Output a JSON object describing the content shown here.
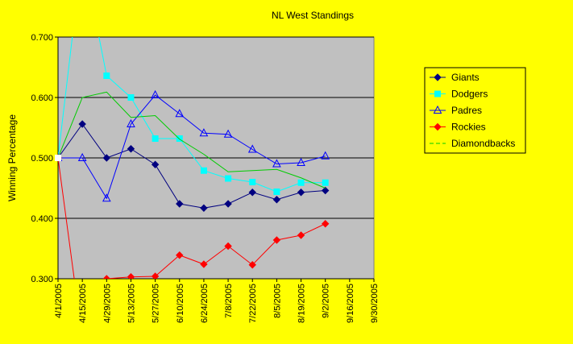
{
  "chart_data": {
    "type": "line",
    "title": "NL West Standings",
    "xlabel": "",
    "ylabel": "Winning Percentage",
    "ylim": [
      0.3,
      0.7
    ],
    "y_ticks": [
      "0.300",
      "0.400",
      "0.500",
      "0.600",
      "0.700"
    ],
    "x": [
      "4/1/2005",
      "4/15/2005",
      "4/29/2005",
      "5/13/2005",
      "5/27/2005",
      "6/10/2005",
      "6/24/2005",
      "7/8/2005",
      "7/22/2005",
      "8/5/2005",
      "8/19/2005",
      "9/2/2005",
      "9/16/2005",
      "9/30/2005"
    ],
    "x_ticks": [
      "4/1/2005",
      "4/15/2005",
      "4/29/2005",
      "5/13/2005",
      "5/27/2005",
      "6/10/2005",
      "6/24/2005",
      "7/8/2005",
      "7/22/2005",
      "8/5/2005",
      "8/19/2005",
      "9/2/2005",
      "9/16/2005",
      "9/30/2005"
    ],
    "grid": true,
    "legend_position": "right",
    "background": "#c0c0c0",
    "series": [
      {
        "name": "Giants",
        "color": "#000080",
        "marker": "diamond",
        "values": [
          0.5,
          0.556,
          0.5,
          0.515,
          0.489,
          0.424,
          0.417,
          0.424,
          0.443,
          0.431,
          0.443,
          0.446,
          null,
          null
        ]
      },
      {
        "name": "Dodgers",
        "color": "#00ffff",
        "marker": "square",
        "values": [
          0.5,
          0.84,
          0.636,
          0.6,
          0.532,
          0.532,
          0.479,
          0.466,
          0.46,
          0.444,
          0.459,
          0.459,
          null,
          null
        ]
      },
      {
        "name": "Padres",
        "color": "#0000ff",
        "marker": "triangle",
        "values": [
          0.5,
          0.5,
          0.433,
          0.556,
          0.604,
          0.573,
          0.541,
          0.539,
          0.514,
          0.49,
          0.492,
          0.503,
          null,
          null
        ]
      },
      {
        "name": "Rockies",
        "color": "#ff0000",
        "marker": "diamond",
        "values": [
          0.5,
          0.2,
          0.3,
          0.303,
          0.304,
          0.339,
          0.324,
          0.354,
          0.323,
          0.364,
          0.372,
          0.391,
          null,
          null
        ]
      },
      {
        "name": "Diamondbacks",
        "color": "#00cc00",
        "marker": "none",
        "values": [
          0.5,
          0.6,
          0.609,
          0.567,
          0.57,
          0.531,
          0.506,
          0.477,
          0.479,
          0.481,
          0.467,
          0.45,
          null,
          null
        ]
      }
    ]
  }
}
